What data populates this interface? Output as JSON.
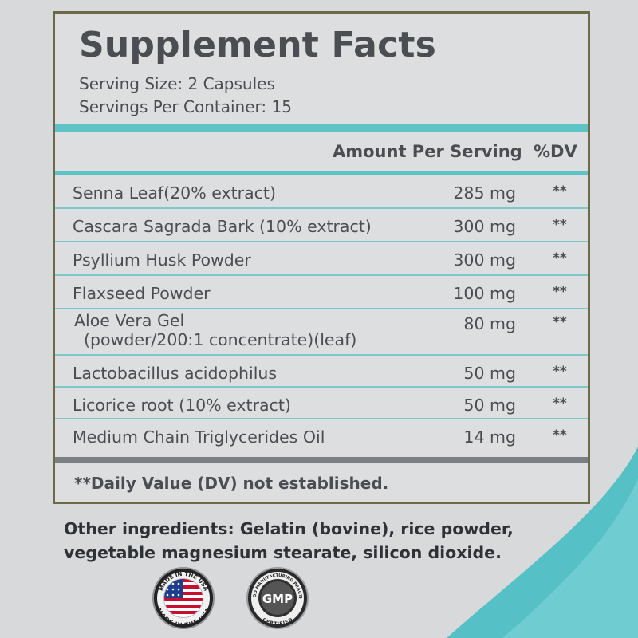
{
  "facts": {
    "title": "Supplement Facts",
    "serving_size": "Serving Size: 2 Capsules",
    "servings_per_container": "Servings Per Container: 15",
    "header_amount": "Amount Per Serving",
    "header_dv": "%DV",
    "rows": [
      {
        "name": "Senna Leaf(20% extract)",
        "amount": "285 mg",
        "dv": "**"
      },
      {
        "name": "Cascara Sagrada Bark (10% extract)",
        "amount": "300 mg",
        "dv": "**"
      },
      {
        "name": "Psyllium Husk Powder",
        "amount": "300 mg",
        "dv": "**"
      },
      {
        "name": "Flaxseed Powder",
        "amount": "100 mg",
        "dv": "**"
      },
      {
        "name": "Aloe Vera Gel",
        "name_line2": "(powder/200:1 concentrate)(leaf)",
        "amount": "80 mg",
        "dv": "**"
      },
      {
        "name": "Lactobacillus acidophilus",
        "amount": "50 mg",
        "dv": "**"
      },
      {
        "name": "Licorice root (10% extract)",
        "amount": "50 mg",
        "dv": "**"
      },
      {
        "name": "Medium Chain Triglycerides Oil",
        "amount": "14 mg",
        "dv": "**"
      }
    ],
    "footnote": "**Daily Value (DV) not established."
  },
  "other_ingredients": "Other ingredients: Gelatin (bovine), rice powder, vegetable magnesium stearate, silicon dioxide.",
  "badges": {
    "usa": {
      "top_text": "MADE IN THE USA",
      "bottom_text": "MADE IN THE USA"
    },
    "gmp": {
      "center_text": "GMP",
      "top_text": "GOOD MANUFACTURING PRACTICE",
      "bottom_text": "CERTIFIED"
    }
  },
  "colors": {
    "accent_teal": "#5ec2c7",
    "panel_border": "#6e6a48",
    "text": "#4a4d52"
  }
}
